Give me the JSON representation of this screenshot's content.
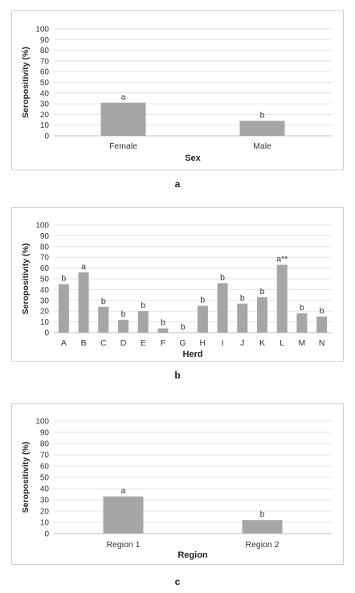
{
  "chart_data": [
    {
      "type": "bar",
      "ylabel": "Seropositivity (%)",
      "xlabel": "Sex",
      "ylim": [
        0,
        100
      ],
      "yticks": [
        0,
        10,
        20,
        30,
        40,
        50,
        60,
        70,
        80,
        90,
        100
      ],
      "grid": true,
      "categories": [
        "Female",
        "Male"
      ],
      "values": [
        31,
        14
      ],
      "annotations": [
        "a",
        "b"
      ],
      "bar_color": "#a6a6a6",
      "caption": "a"
    },
    {
      "type": "bar",
      "ylabel": "Seropositivity (%)",
      "xlabel": "Herd",
      "ylim": [
        0,
        100
      ],
      "yticks": [
        0,
        10,
        20,
        30,
        40,
        50,
        60,
        70,
        80,
        90,
        100
      ],
      "grid": true,
      "categories": [
        "A",
        "B",
        "C",
        "D",
        "E",
        "F",
        "G",
        "H",
        "I",
        "J",
        "K",
        "L",
        "M",
        "N"
      ],
      "values": [
        45,
        56,
        24,
        12,
        20,
        4,
        0,
        25,
        46,
        27,
        33,
        63,
        18,
        15
      ],
      "annotations": [
        "b",
        "a",
        "b",
        "b",
        "b",
        "b",
        "b",
        "b",
        "b",
        "b",
        "b",
        "a**",
        "b",
        "b"
      ],
      "bar_color": "#a6a6a6",
      "caption": "b"
    },
    {
      "type": "bar",
      "ylabel": "Seropositivity  (%)",
      "xlabel": "Region",
      "ylim": [
        0,
        100
      ],
      "yticks": [
        0,
        10,
        20,
        30,
        40,
        50,
        60,
        70,
        80,
        90,
        100
      ],
      "grid": true,
      "categories": [
        "Region  1",
        "Region 2"
      ],
      "values": [
        33,
        12
      ],
      "annotations": [
        "a",
        "b"
      ],
      "bar_color": "#a6a6a6",
      "caption": "c"
    }
  ]
}
